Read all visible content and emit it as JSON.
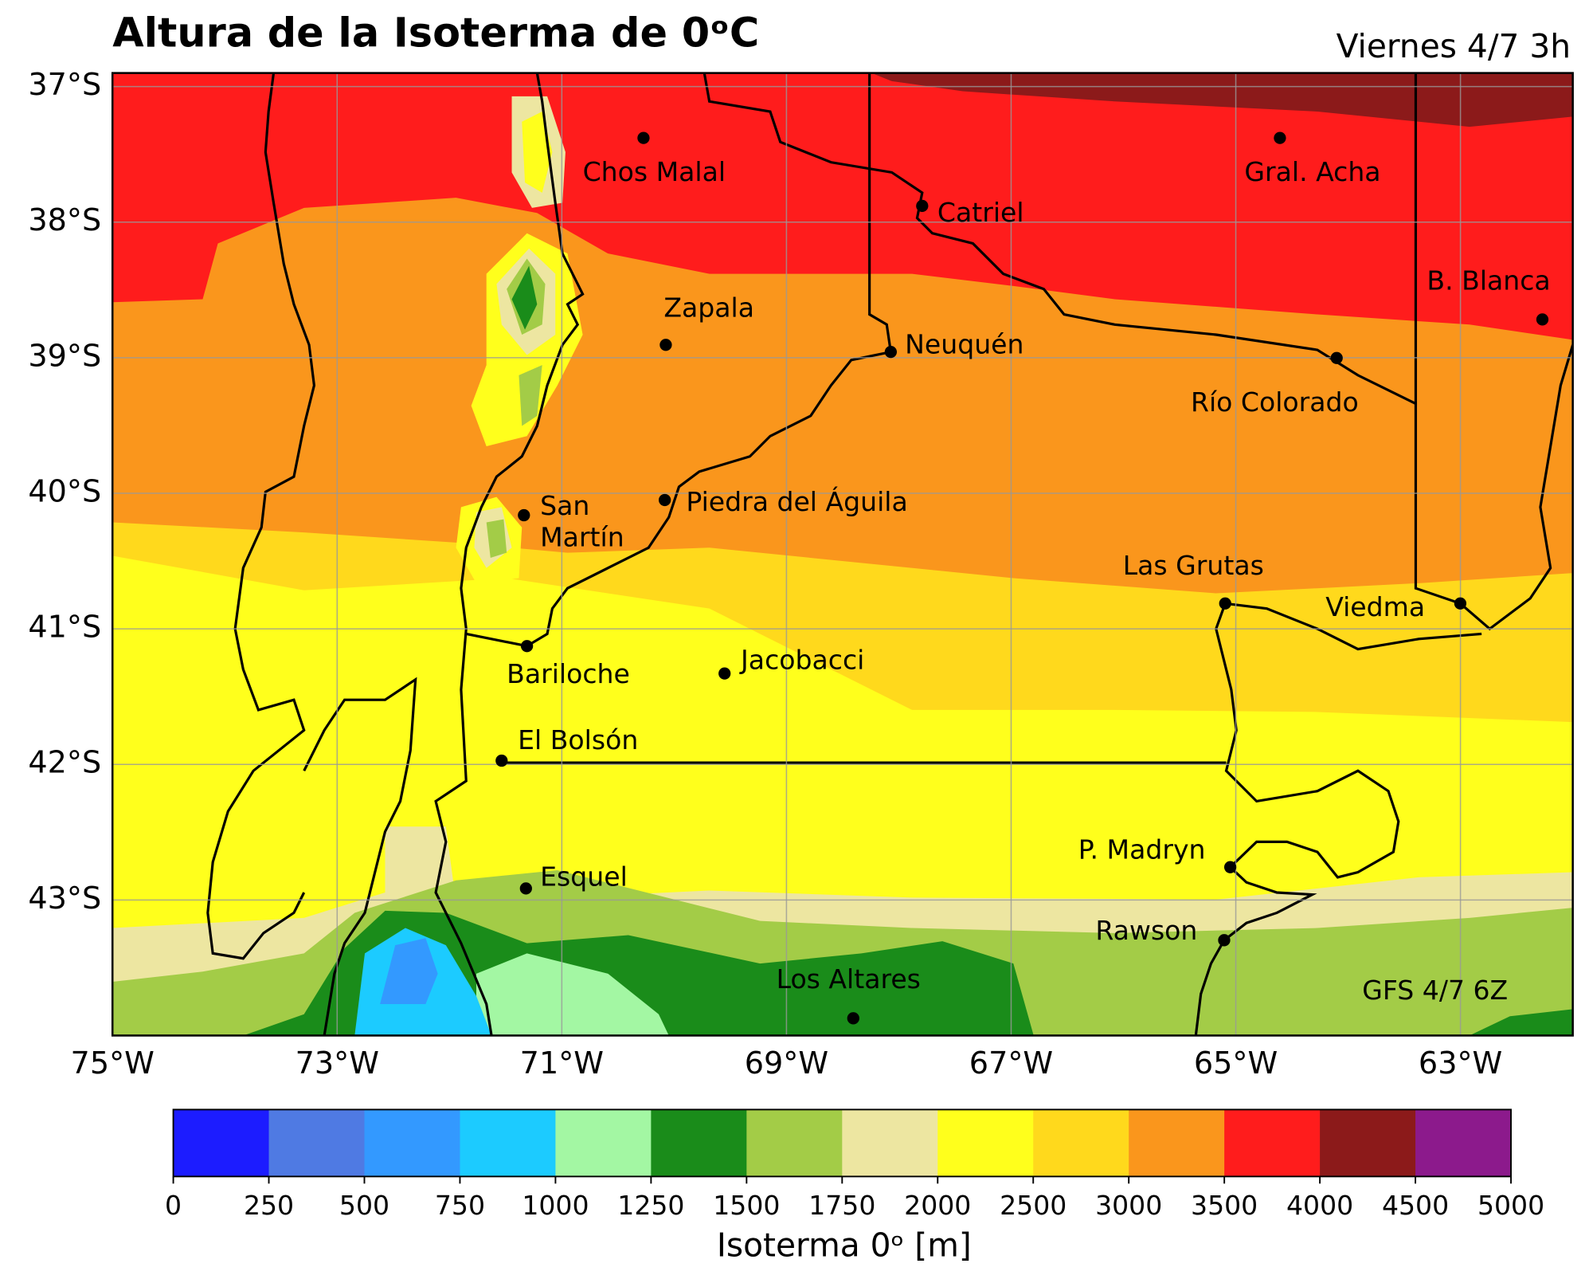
{
  "title": "Altura de la Isoterma de 0ᵒC",
  "subtitle": "Viernes 4/7 3h",
  "note": "GFS 4/7 6Z",
  "map": {
    "xlim": [
      -75,
      -62
    ],
    "ylim": [
      -44,
      -36.9
    ],
    "xticks": [
      {
        "value": -75,
        "label": "75°W"
      },
      {
        "value": -73,
        "label": "73°W"
      },
      {
        "value": -71,
        "label": "71°W"
      },
      {
        "value": -69,
        "label": "69°W"
      },
      {
        "value": -67,
        "label": "67°W"
      },
      {
        "value": -65,
        "label": "65°W"
      },
      {
        "value": -63,
        "label": "63°W"
      }
    ],
    "yticks": [
      {
        "value": -37,
        "label": "37°S"
      },
      {
        "value": -38,
        "label": "38°S"
      },
      {
        "value": -39,
        "label": "39°S"
      },
      {
        "value": -40,
        "label": "40°S"
      },
      {
        "value": -41,
        "label": "41°S"
      },
      {
        "value": -42,
        "label": "42°S"
      },
      {
        "value": -43,
        "label": "43°S"
      }
    ],
    "grid": true,
    "cities": [
      {
        "label": [
          "Chos Malal"
        ]
      },
      {
        "label": [
          "Gral. Acha"
        ]
      },
      {
        "label": [
          "Catriel"
        ]
      },
      {
        "label": [
          "B. Blanca"
        ]
      },
      {
        "label": [
          "Zapala"
        ]
      },
      {
        "label": [
          "Neuquén"
        ]
      },
      {
        "label": [
          "Río Colorado"
        ]
      },
      {
        "label": [
          "San",
          "Martín"
        ]
      },
      {
        "label": [
          "Piedra del Águila"
        ]
      },
      {
        "label": [
          "Las Grutas"
        ]
      },
      {
        "label": [
          "Viedma"
        ]
      },
      {
        "label": [
          "Bariloche"
        ]
      },
      {
        "label": [
          "Jacobacci"
        ]
      },
      {
        "label": [
          "El Bolsón"
        ]
      },
      {
        "label": [
          "P. Madryn"
        ]
      },
      {
        "label": [
          "Esquel"
        ]
      },
      {
        "label": [
          "Rawson"
        ]
      },
      {
        "label": [
          "Los Altares"
        ]
      }
    ]
  },
  "colorbar": {
    "label": "Isoterma 0ᵒ [m]",
    "levels": [
      0,
      250,
      500,
      750,
      1000,
      1250,
      1500,
      1750,
      2000,
      2500,
      3000,
      3500,
      4000,
      4500,
      5000
    ],
    "colors": [
      "#1c1cff",
      "#4f7ae3",
      "#3399ff",
      "#1ccbff",
      "#a3f7a3",
      "#1a8c1a",
      "#a3cc47",
      "#ede6a1",
      "#ffff1c",
      "#ffd91c",
      "#fa961c",
      "#ff1c1c",
      "#8c1a1a",
      "#8c1a8c"
    ]
  }
}
